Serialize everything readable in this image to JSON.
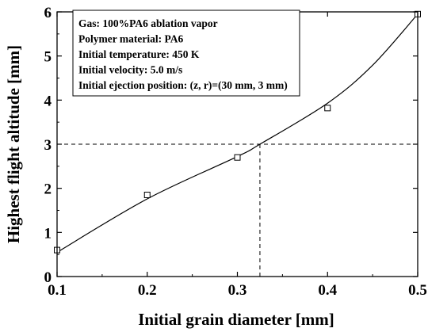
{
  "chart_data": {
    "type": "scatter",
    "title": "",
    "xlabel": "Initial grain diameter [mm]",
    "ylabel": "Highest flight altitude [mm]",
    "xlim": [
      0.1,
      0.5
    ],
    "ylim": [
      0,
      6
    ],
    "xticks": [
      "0.1",
      "0.2",
      "0.3",
      "0.4",
      "0.5"
    ],
    "yticks": [
      "0",
      "1",
      "2",
      "3",
      "4",
      "5",
      "6"
    ],
    "grid": false,
    "series": [
      {
        "marker": "open-square",
        "points": [
          {
            "x": 0.1,
            "y": 0.6
          },
          {
            "x": 0.2,
            "y": 1.85
          },
          {
            "x": 0.3,
            "y": 2.7
          },
          {
            "x": 0.4,
            "y": 3.82
          },
          {
            "x": 0.5,
            "y": 5.95
          }
        ]
      },
      {
        "style": "smooth-curve",
        "points": [
          {
            "x": 0.1,
            "y": 0.55
          },
          {
            "x": 0.2,
            "y": 1.76
          },
          {
            "x": 0.3,
            "y": 2.72
          },
          {
            "x": 0.325,
            "y": 3.0
          },
          {
            "x": 0.4,
            "y": 3.93
          },
          {
            "x": 0.45,
            "y": 4.79
          },
          {
            "x": 0.5,
            "y": 5.95
          }
        ]
      }
    ],
    "reference_lines": [
      {
        "type": "horizontal",
        "y": 3.0,
        "style": "dashed"
      },
      {
        "type": "vertical",
        "x": 0.325,
        "style": "dashed"
      }
    ],
    "annotation": {
      "placement": "top-left",
      "lines": [
        "Gas: 100%PA6 ablation vapor",
        "Polymer material: PA6",
        "Initial temperature: 450 K",
        "Initial velocity: 5.0 m/s",
        "Initial ejection position: (z, r)=(30 mm, 3 mm)"
      ]
    }
  }
}
